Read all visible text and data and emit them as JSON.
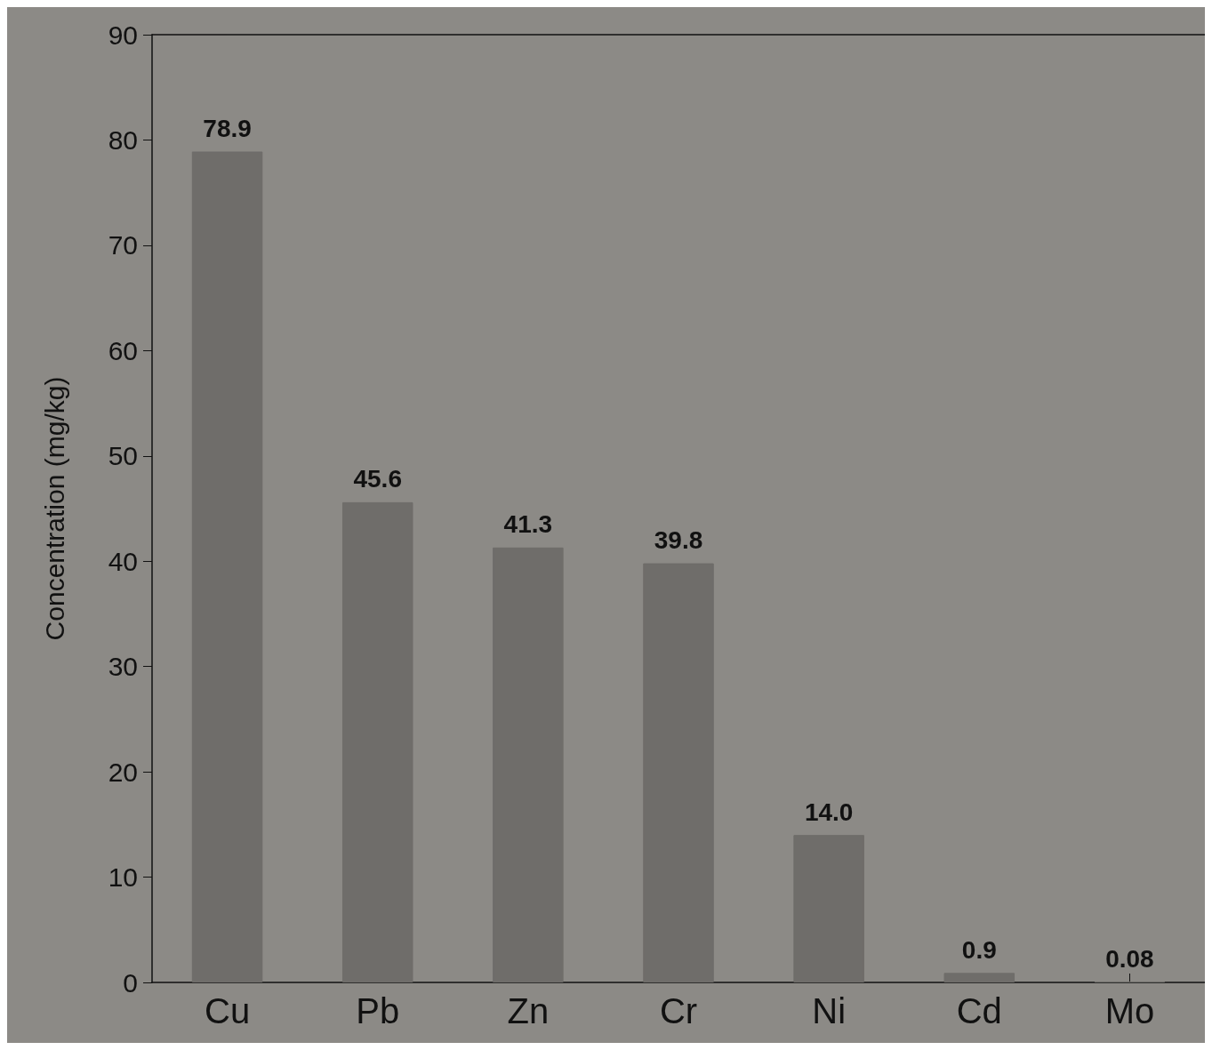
{
  "chart_data": {
    "type": "bar",
    "ylabel": "Concentration (mg/kg)",
    "categories": [
      "Cu",
      "Pb",
      "Zn",
      "Cr",
      "Ni",
      "Cd",
      "Mo"
    ],
    "values": [
      78.9,
      45.6,
      41.3,
      39.8,
      14.0,
      0.9,
      0.08
    ],
    "value_labels": [
      "78.9",
      "45.6",
      "41.3",
      "39.8",
      "14.0",
      "0.9",
      "0.08"
    ],
    "color": "#6f6d6a",
    "ylim": [
      0,
      90
    ],
    "yticks": [
      0,
      10,
      20,
      30,
      40,
      50,
      60,
      70,
      80,
      90
    ],
    "grid": false
  }
}
